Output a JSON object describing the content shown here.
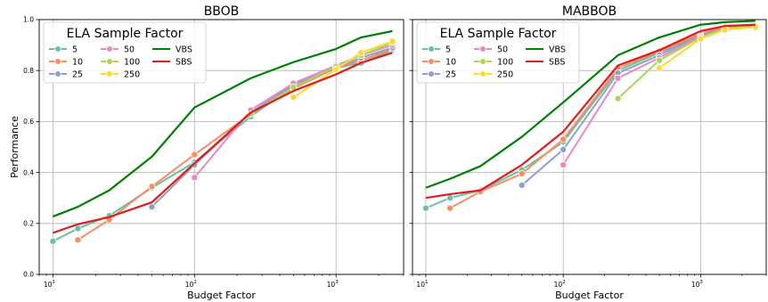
{
  "chart_data": [
    {
      "type": "line",
      "title": "BBOB",
      "xlabel": "Budget Factor",
      "ylabel": "Performance",
      "xscale": "log",
      "xlim": [
        8,
        3000
      ],
      "ylim": [
        0,
        1
      ],
      "grid": true,
      "yticks": [
        "0.0",
        "0.2",
        "0.4",
        "0.6",
        "0.8",
        "1.0"
      ],
      "xticks": [
        {
          "value": 10,
          "base": "10",
          "exp": "1"
        },
        {
          "value": 100,
          "base": "10",
          "exp": "2"
        },
        {
          "value": 1000,
          "base": "10",
          "exp": "3"
        }
      ],
      "legend": {
        "title": "ELA Sample Factor",
        "placement": "top-left"
      },
      "series": [
        {
          "name": "5",
          "color": "#66c2a5",
          "markers": true,
          "points": [
            [
              10,
              0.13
            ],
            [
              15,
              0.18
            ],
            [
              25,
              0.23
            ],
            [
              50,
              0.34
            ],
            [
              100,
              0.44
            ],
            [
              250,
              0.62
            ],
            [
              500,
              0.74
            ],
            [
              1000,
              0.81
            ],
            [
              1500,
              0.83
            ],
            [
              2500,
              0.88
            ]
          ]
        },
        {
          "name": "10",
          "color": "#fc8d62",
          "markers": true,
          "points": [
            [
              15,
              0.135
            ],
            [
              25,
              0.215
            ],
            [
              50,
              0.345
            ],
            [
              100,
              0.47
            ],
            [
              250,
              0.63
            ],
            [
              500,
              0.73
            ],
            [
              1000,
              0.81
            ],
            [
              1500,
              0.84
            ],
            [
              2500,
              0.885
            ]
          ]
        },
        {
          "name": "25",
          "color": "#8da0cb",
          "markers": true,
          "points": [
            [
              50,
              0.265
            ],
            [
              100,
              0.43
            ],
            [
              250,
              0.635
            ],
            [
              500,
              0.745
            ],
            [
              1000,
              0.81
            ],
            [
              1500,
              0.85
            ],
            [
              2500,
              0.89
            ]
          ]
        },
        {
          "name": "50",
          "color": "#e78ac3",
          "markers": true,
          "points": [
            [
              100,
              0.38
            ],
            [
              250,
              0.645
            ],
            [
              500,
              0.75
            ],
            [
              1000,
              0.82
            ],
            [
              1500,
              0.86
            ],
            [
              2500,
              0.9
            ]
          ]
        },
        {
          "name": "100",
          "color": "#a6d854",
          "markers": true,
          "points": [
            [
              250,
              0.63
            ],
            [
              500,
              0.735
            ],
            [
              1000,
              0.815
            ],
            [
              1500,
              0.86
            ],
            [
              2500,
              0.91
            ]
          ]
        },
        {
          "name": "250",
          "color": "#ffd92f",
          "markers": true,
          "points": [
            [
              500,
              0.695
            ],
            [
              1000,
              0.805
            ],
            [
              1500,
              0.87
            ],
            [
              2500,
              0.915
            ]
          ]
        },
        {
          "name": "VBS",
          "color": "#008000",
          "markers": false,
          "points": [
            [
              10,
              0.227
            ],
            [
              15,
              0.265
            ],
            [
              25,
              0.33
            ],
            [
              50,
              0.462
            ],
            [
              100,
              0.655
            ],
            [
              250,
              0.77
            ],
            [
              500,
              0.833
            ],
            [
              1000,
              0.885
            ],
            [
              1500,
              0.93
            ],
            [
              2500,
              0.955
            ]
          ]
        },
        {
          "name": "SBS",
          "color": "#e41a1c",
          "markers": false,
          "points": [
            [
              10,
              0.163
            ],
            [
              15,
              0.197
            ],
            [
              25,
              0.225
            ],
            [
              50,
              0.283
            ],
            [
              100,
              0.436
            ],
            [
              250,
              0.635
            ],
            [
              500,
              0.72
            ],
            [
              1000,
              0.785
            ],
            [
              1500,
              0.83
            ],
            [
              2500,
              0.87
            ]
          ]
        }
      ]
    },
    {
      "type": "line",
      "title": "MABBOB",
      "xlabel": "Budget Factor",
      "ylabel": "",
      "xscale": "log",
      "xlim": [
        8,
        3000
      ],
      "ylim": [
        0,
        1
      ],
      "grid": true,
      "yticks": [
        "0.0",
        "0.2",
        "0.4",
        "0.6",
        "0.8",
        "1.0"
      ],
      "xticks": [
        {
          "value": 10,
          "base": "10",
          "exp": "1"
        },
        {
          "value": 100,
          "base": "10",
          "exp": "2"
        },
        {
          "value": 1000,
          "base": "10",
          "exp": "3"
        }
      ],
      "legend": {
        "title": "ELA Sample Factor",
        "placement": "top-left"
      },
      "series": [
        {
          "name": "5",
          "color": "#66c2a5",
          "markers": true,
          "points": [
            [
              10,
              0.26
            ],
            [
              15,
              0.3
            ],
            [
              25,
              0.33
            ],
            [
              50,
              0.41
            ],
            [
              100,
              0.52
            ],
            [
              250,
              0.8
            ],
            [
              500,
              0.87
            ],
            [
              1000,
              0.94
            ],
            [
              1500,
              0.97
            ],
            [
              2500,
              0.975
            ]
          ]
        },
        {
          "name": "10",
          "color": "#fc8d62",
          "markers": true,
          "points": [
            [
              15,
              0.26
            ],
            [
              25,
              0.325
            ],
            [
              50,
              0.395
            ],
            [
              100,
              0.53
            ],
            [
              250,
              0.81
            ],
            [
              500,
              0.875
            ],
            [
              1000,
              0.945
            ],
            [
              1500,
              0.97
            ],
            [
              2500,
              0.975
            ]
          ]
        },
        {
          "name": "25",
          "color": "#8da0cb",
          "markers": true,
          "points": [
            [
              50,
              0.35
            ],
            [
              100,
              0.49
            ],
            [
              250,
              0.79
            ],
            [
              500,
              0.86
            ],
            [
              1000,
              0.94
            ],
            [
              1500,
              0.965
            ],
            [
              2500,
              0.975
            ]
          ]
        },
        {
          "name": "50",
          "color": "#e78ac3",
          "markers": true,
          "points": [
            [
              100,
              0.43
            ],
            [
              250,
              0.77
            ],
            [
              500,
              0.85
            ],
            [
              1000,
              0.935
            ],
            [
              1500,
              0.96
            ],
            [
              2500,
              0.975
            ]
          ]
        },
        {
          "name": "100",
          "color": "#a6d854",
          "markers": true,
          "points": [
            [
              250,
              0.69
            ],
            [
              500,
              0.84
            ],
            [
              1000,
              0.93
            ],
            [
              1500,
              0.965
            ],
            [
              2500,
              0.975
            ]
          ]
        },
        {
          "name": "250",
          "color": "#ffd92f",
          "markers": true,
          "points": [
            [
              500,
              0.81
            ],
            [
              1000,
              0.925
            ],
            [
              1500,
              0.96
            ],
            [
              2500,
              0.97
            ]
          ]
        },
        {
          "name": "VBS",
          "color": "#008000",
          "markers": false,
          "points": [
            [
              10,
              0.34
            ],
            [
              15,
              0.375
            ],
            [
              25,
              0.425
            ],
            [
              50,
              0.54
            ],
            [
              100,
              0.675
            ],
            [
              250,
              0.86
            ],
            [
              500,
              0.93
            ],
            [
              1000,
              0.98
            ],
            [
              1500,
              0.99
            ],
            [
              2500,
              0.995
            ]
          ]
        },
        {
          "name": "SBS",
          "color": "#e41a1c",
          "markers": false,
          "points": [
            [
              10,
              0.3
            ],
            [
              15,
              0.315
            ],
            [
              25,
              0.33
            ],
            [
              50,
              0.43
            ],
            [
              100,
              0.56
            ],
            [
              250,
              0.82
            ],
            [
              500,
              0.88
            ],
            [
              1000,
              0.955
            ],
            [
              1500,
              0.975
            ],
            [
              2500,
              0.98
            ]
          ]
        }
      ]
    }
  ]
}
